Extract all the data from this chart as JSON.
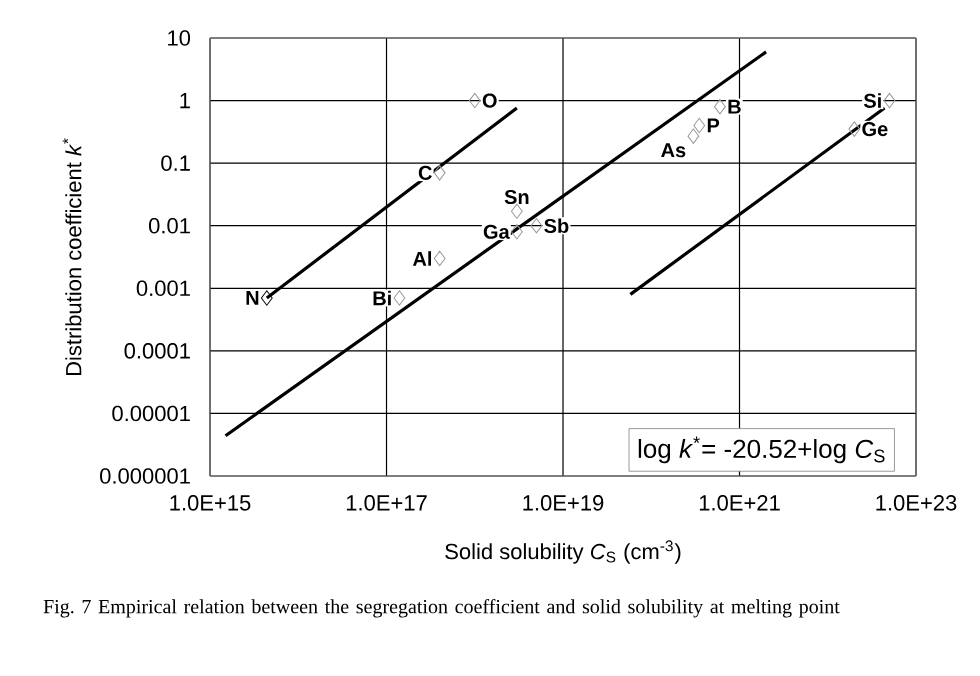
{
  "chart_data": {
    "type": "line",
    "xlabel": "Solid solubility *C*$_{S}$ (cm$^{-3}$)",
    "ylabel": "Distribution coefficient *k*$^{*}$",
    "log": "xy",
    "grid": true,
    "xlim": [
      1000000000000000.0,
      1e+23
    ],
    "ylim": [
      1e-06,
      10
    ],
    "xticks": [
      {
        "value": 1000000000000000.0,
        "label": "1.0E+15"
      },
      {
        "value": 1e+17,
        "label": "1.0E+17"
      },
      {
        "value": 1e+19,
        "label": "1.0E+19"
      },
      {
        "value": 1e+21,
        "label": "1.0E+21"
      },
      {
        "value": 1e+23,
        "label": "1.0E+23"
      }
    ],
    "yticks": [
      {
        "value": 1e-06,
        "label": "0.000001"
      },
      {
        "value": 1e-05,
        "label": "0.00001"
      },
      {
        "value": 0.0001,
        "label": "0.0001"
      },
      {
        "value": 0.001,
        "label": "0.001"
      },
      {
        "value": 0.01,
        "label": "0.01"
      },
      {
        "value": 0.1,
        "label": "0.1"
      },
      {
        "value": 1,
        "label": "1"
      },
      {
        "value": 10,
        "label": "10"
      }
    ],
    "series": [
      {
        "color": "#000000",
        "marker": "none",
        "x": [
          4400000000000000.0,
          3e+18
        ],
        "values": [
          0.0007,
          0.76
        ]
      },
      {
        "type": "line",
        "color": "#000000",
        "marker": "none",
        "x": [
          1500000000000000.0,
          2e+21
        ],
        "values": [
          4.4e-06,
          6
        ]
      },
      {
        "type": "line",
        "color": "#000000",
        "marker": "none",
        "x": [
          5.8e+19,
          4.4e+22
        ],
        "values": [
          0.0008,
          0.76
        ]
      },
      {
        "type": "scatter",
        "color": "#999999",
        "marker": "diamond",
        "x": [
          1e+18,
          4e+17,
          1.4e+17,
          4e+17,
          3e+18,
          3e+18,
          5e+18,
          3e+20,
          3.5e+20,
          6e+20,
          5e+22,
          2e+22
        ],
        "values": [
          1,
          0.07,
          0.0007,
          0.003,
          0.017,
          0.008,
          0.01,
          0.27,
          0.4,
          0.8,
          1,
          0.35
        ]
      },
      {
        "type": "scatter",
        "color": "#000000",
        "marker": "diamond",
        "x": [
          4400000000000000.0
        ],
        "values": [
          0.0007
        ]
      }
    ],
    "annotations": [
      {
        "text": "O",
        "x": 1e+18,
        "y": 1
      },
      {
        "text": "C",
        "x": 4e+17,
        "y": 0.07
      },
      {
        "text": "N",
        "x": 4400000000000000.0,
        "y": 0.0007
      },
      {
        "text": "Bi",
        "x": 1.4e+17,
        "y": 0.0007
      },
      {
        "text": "Al",
        "x": 4e+17,
        "y": 0.003
      },
      {
        "text": "Sn",
        "x": 3e+18,
        "y": 0.017
      },
      {
        "text": "Ga",
        "x": 3e+18,
        "y": 0.008
      },
      {
        "text": "Sb",
        "x": 5e+18,
        "y": 0.01
      },
      {
        "text": "As",
        "x": 3e+20,
        "y": 0.27
      },
      {
        "text": "P",
        "x": 3.5e+20,
        "y": 0.4
      },
      {
        "text": "B",
        "x": 6e+20,
        "y": 0.8
      },
      {
        "text": "Si",
        "x": 5e+22,
        "y": 1
      },
      {
        "text": "Ge",
        "x": 2e+22,
        "y": 0.35
      },
      "log *k*$^{*}$= -20.52+log *C*$_{S}$",
      "Fig. 7 Empirical relation between the segregation coefficient and solid solubility at melting point"
    ]
  }
}
